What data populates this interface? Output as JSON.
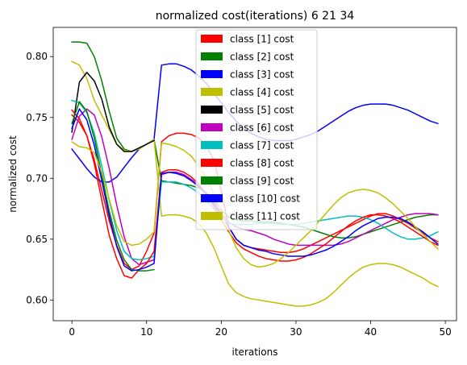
{
  "chart_data": {
    "type": "line",
    "title": "normalized cost(iterations) 6 21 34",
    "xlabel": "iterations",
    "ylabel": "normalized cost",
    "xlim": [
      -2.5,
      51.5
    ],
    "ylim": [
      0.583,
      0.824
    ],
    "xticks": [
      0,
      10,
      20,
      30,
      40,
      50
    ],
    "yticks": [
      0.6,
      0.65,
      0.7,
      0.75,
      0.8
    ],
    "xtick_labels": [
      "0",
      "10",
      "20",
      "30",
      "40",
      "50"
    ],
    "ytick_labels": [
      "0.60",
      "0.65",
      "0.70",
      "0.75",
      "0.80"
    ],
    "grid": false,
    "legend_position": "top-center",
    "series": [
      {
        "name": "class [1] cost",
        "color": "#ff0000",
        "x": [
          0,
          1,
          2,
          3,
          4,
          5,
          6,
          7,
          8,
          9,
          10,
          11,
          12,
          13,
          14,
          15,
          16,
          17,
          18,
          19,
          20,
          21,
          22,
          23,
          24,
          25,
          26,
          27,
          28,
          29,
          30,
          31,
          32,
          33,
          34,
          35,
          36,
          37,
          38,
          39,
          40,
          41,
          42,
          43,
          44,
          45,
          46,
          47,
          48,
          49
        ],
        "y": [
          0.752,
          0.746,
          0.735,
          0.715,
          0.69,
          0.665,
          0.645,
          0.63,
          0.625,
          0.628,
          0.64,
          0.655,
          0.73,
          0.735,
          0.737,
          0.737,
          0.736,
          0.733,
          0.727,
          0.715,
          0.69,
          0.66,
          0.65,
          0.645,
          0.643,
          0.642,
          0.641,
          0.64,
          0.639,
          0.639,
          0.64,
          0.642,
          0.645,
          0.648,
          0.651,
          0.654,
          0.657,
          0.66,
          0.663,
          0.666,
          0.669,
          0.671,
          0.671,
          0.669,
          0.666,
          0.663,
          0.659,
          0.655,
          0.651,
          0.648
        ]
      },
      {
        "name": "class [2] cost",
        "color": "#008000",
        "x": [
          0,
          1,
          2,
          3,
          4,
          5,
          6,
          7,
          8,
          9,
          10,
          11,
          12,
          13,
          14,
          15,
          16,
          17,
          18,
          19,
          20,
          21,
          22,
          23,
          24,
          25,
          26,
          27,
          28,
          29,
          30,
          31,
          32,
          33,
          34,
          35,
          36,
          37,
          38,
          39,
          40,
          41,
          42,
          43,
          44,
          45,
          46,
          47,
          48,
          49
        ],
        "y": [
          0.812,
          0.812,
          0.811,
          0.8,
          0.78,
          0.755,
          0.733,
          0.724,
          0.722,
          0.724,
          0.728,
          0.732,
          0.698,
          0.697,
          0.696,
          0.695,
          0.694,
          0.692,
          0.688,
          0.682,
          0.674,
          0.668,
          0.666,
          0.665,
          0.665,
          0.664,
          0.664,
          0.664,
          0.663,
          0.662,
          0.661,
          0.66,
          0.658,
          0.656,
          0.654,
          0.652,
          0.651,
          0.651,
          0.652,
          0.654,
          0.656,
          0.658,
          0.66,
          0.662,
          0.664,
          0.666,
          0.668,
          0.669,
          0.67,
          0.67
        ]
      },
      {
        "name": "class [3] cost",
        "color": "#0000ff",
        "x": [
          0,
          1,
          2,
          3,
          4,
          5,
          6,
          7,
          8,
          9,
          10,
          11,
          12,
          13,
          14,
          15,
          16,
          17,
          18,
          19,
          20,
          21,
          22,
          23,
          24,
          25,
          26,
          27,
          28,
          29,
          30,
          31,
          32,
          33,
          34,
          35,
          36,
          37,
          38,
          39,
          40,
          41,
          42,
          43,
          44,
          45,
          46,
          47,
          48,
          49
        ],
        "y": [
          0.724,
          0.716,
          0.708,
          0.701,
          0.697,
          0.697,
          0.701,
          0.709,
          0.717,
          0.724,
          0.728,
          0.732,
          0.793,
          0.794,
          0.794,
          0.792,
          0.789,
          0.784,
          0.778,
          0.77,
          0.762,
          0.754,
          0.747,
          0.741,
          0.737,
          0.734,
          0.732,
          0.731,
          0.731,
          0.731,
          0.732,
          0.734,
          0.736,
          0.739,
          0.743,
          0.747,
          0.751,
          0.755,
          0.758,
          0.76,
          0.761,
          0.761,
          0.761,
          0.76,
          0.758,
          0.756,
          0.753,
          0.75,
          0.747,
          0.745
        ]
      },
      {
        "name": "class [4] cost",
        "color": "#bfbf00",
        "x": [
          0,
          1,
          2,
          3,
          4,
          5,
          6,
          7,
          8,
          9,
          10,
          11,
          12,
          13,
          14,
          15,
          16,
          17,
          18,
          19,
          20,
          21,
          22,
          23,
          24,
          25,
          26,
          27,
          28,
          29,
          30,
          31,
          32,
          33,
          34,
          35,
          36,
          37,
          38,
          39,
          40,
          41,
          42,
          43,
          44,
          45,
          46,
          47,
          48,
          49
        ],
        "y": [
          0.796,
          0.793,
          0.782,
          0.764,
          0.752,
          0.74,
          0.728,
          0.723,
          0.722,
          0.724,
          0.728,
          0.732,
          0.669,
          0.67,
          0.67,
          0.669,
          0.667,
          0.663,
          0.655,
          0.643,
          0.628,
          0.613,
          0.606,
          0.603,
          0.601,
          0.6,
          0.599,
          0.598,
          0.597,
          0.596,
          0.595,
          0.595,
          0.596,
          0.598,
          0.601,
          0.606,
          0.612,
          0.618,
          0.623,
          0.627,
          0.629,
          0.63,
          0.63,
          0.629,
          0.627,
          0.624,
          0.621,
          0.618,
          0.614,
          0.611
        ]
      },
      {
        "name": "class [5] cost",
        "color": "#000000",
        "x": [
          0,
          1,
          2,
          3,
          4,
          5,
          6,
          7,
          8,
          9,
          10,
          11
        ],
        "y": [
          0.738,
          0.779,
          0.787,
          0.78,
          0.765,
          0.742,
          0.728,
          0.722,
          0.722,
          0.725,
          0.728,
          0.731
        ]
      },
      {
        "name": "class [6] cost",
        "color": "#bf00bf",
        "x": [
          0,
          1,
          2,
          3,
          4,
          5,
          6,
          7,
          8,
          9,
          10,
          11,
          12,
          13,
          14,
          15,
          16,
          17,
          18,
          19,
          20,
          21,
          22,
          23,
          24,
          25,
          26,
          27,
          28,
          29,
          30,
          31,
          32,
          33,
          34,
          35,
          36,
          37,
          38,
          39,
          40,
          41,
          42,
          43,
          44,
          45,
          46,
          47,
          48,
          49
        ],
        "y": [
          0.732,
          0.751,
          0.757,
          0.752,
          0.734,
          0.708,
          0.678,
          0.652,
          0.634,
          0.629,
          0.631,
          0.633,
          0.703,
          0.705,
          0.705,
          0.703,
          0.699,
          0.694,
          0.688,
          0.68,
          0.671,
          0.664,
          0.66,
          0.658,
          0.657,
          0.655,
          0.653,
          0.65,
          0.648,
          0.646,
          0.645,
          0.645,
          0.645,
          0.645,
          0.645,
          0.645,
          0.646,
          0.648,
          0.651,
          0.654,
          0.657,
          0.66,
          0.663,
          0.666,
          0.668,
          0.67,
          0.671,
          0.671,
          0.671,
          0.67
        ]
      },
      {
        "name": "class [7] cost",
        "color": "#00bfbf",
        "x": [
          0,
          1,
          2,
          3,
          4,
          5,
          6,
          7,
          8,
          9,
          10,
          11,
          12,
          13,
          14,
          15,
          16,
          17,
          18,
          19,
          20,
          21,
          22,
          23,
          24,
          25,
          26,
          27,
          28,
          29,
          30,
          31,
          32,
          33,
          34,
          35,
          36,
          37,
          38,
          39,
          40,
          41,
          42,
          43,
          44,
          45,
          46,
          47,
          48,
          49
        ],
        "y": [
          0.764,
          0.762,
          0.754,
          0.737,
          0.71,
          0.682,
          0.657,
          0.64,
          0.634,
          0.633,
          0.634,
          0.636,
          0.697,
          0.697,
          0.697,
          0.695,
          0.692,
          0.688,
          0.682,
          0.675,
          0.668,
          0.663,
          0.662,
          0.662,
          0.662,
          0.663,
          0.663,
          0.663,
          0.662,
          0.662,
          0.662,
          0.663,
          0.664,
          0.665,
          0.666,
          0.667,
          0.668,
          0.669,
          0.669,
          0.668,
          0.666,
          0.663,
          0.659,
          0.655,
          0.652,
          0.65,
          0.65,
          0.651,
          0.653,
          0.656
        ]
      },
      {
        "name": "class [8] cost",
        "color": "#ff0000",
        "x": [
          0,
          1,
          2,
          3,
          4,
          5,
          6,
          7,
          8,
          9,
          10,
          11,
          12,
          13,
          14,
          15,
          16,
          17,
          18,
          19,
          20,
          21,
          22,
          23,
          24,
          25,
          26,
          27,
          28,
          29,
          30,
          31,
          32,
          33,
          34,
          35,
          36,
          37,
          38,
          39,
          40,
          41,
          42,
          43,
          44,
          45,
          46,
          47,
          48,
          49
        ],
        "y": [
          0.756,
          0.749,
          0.735,
          0.712,
          0.682,
          0.653,
          0.634,
          0.62,
          0.618,
          0.625,
          0.63,
          0.64,
          0.705,
          0.707,
          0.707,
          0.705,
          0.701,
          0.695,
          0.687,
          0.677,
          0.666,
          0.656,
          0.647,
          0.642,
          0.639,
          0.636,
          0.634,
          0.633,
          0.632,
          0.632,
          0.633,
          0.635,
          0.638,
          0.642,
          0.646,
          0.651,
          0.656,
          0.661,
          0.665,
          0.668,
          0.67,
          0.67,
          0.669,
          0.667,
          0.664,
          0.66,
          0.656,
          0.652,
          0.648,
          0.645
        ]
      },
      {
        "name": "class [9] cost",
        "color": "#008000",
        "x": [
          0,
          1,
          2,
          3,
          4,
          5,
          6,
          7,
          8,
          9,
          10,
          11
        ],
        "y": [
          0.745,
          0.763,
          0.755,
          0.733,
          0.703,
          0.673,
          0.649,
          0.633,
          0.625,
          0.624,
          0.624,
          0.625
        ]
      },
      {
        "name": "class [10] cost",
        "color": "#0000ff",
        "x": [
          0,
          1,
          2,
          3,
          4,
          5,
          6,
          7,
          8,
          9,
          10,
          11,
          12,
          13,
          14,
          15,
          16,
          17,
          18,
          19,
          20,
          21,
          22,
          23,
          24,
          25,
          26,
          27,
          28,
          29,
          30,
          31,
          32,
          33,
          34,
          35,
          36,
          37,
          38,
          39,
          40,
          41,
          42,
          43,
          44,
          45,
          46,
          47,
          48,
          49
        ],
        "y": [
          0.741,
          0.757,
          0.748,
          0.727,
          0.698,
          0.669,
          0.644,
          0.628,
          0.624,
          0.625,
          0.627,
          0.63,
          0.704,
          0.705,
          0.704,
          0.702,
          0.698,
          0.693,
          0.687,
          0.679,
          0.67,
          0.66,
          0.65,
          0.645,
          0.643,
          0.641,
          0.64,
          0.638,
          0.637,
          0.636,
          0.636,
          0.636,
          0.637,
          0.639,
          0.641,
          0.644,
          0.648,
          0.652,
          0.657,
          0.661,
          0.664,
          0.667,
          0.668,
          0.668,
          0.667,
          0.664,
          0.66,
          0.656,
          0.651,
          0.646
        ]
      },
      {
        "name": "class [11] cost",
        "color": "#bfbf00",
        "x": [
          0,
          1,
          2,
          3,
          4,
          5,
          6,
          7,
          8,
          9,
          10,
          11,
          12,
          13,
          14,
          15,
          16,
          17,
          18,
          19,
          20,
          21,
          22,
          23,
          24,
          25,
          26,
          27,
          28,
          29,
          30,
          31,
          32,
          33,
          34,
          35,
          36,
          37,
          38,
          39,
          40,
          41,
          42,
          43,
          44,
          45,
          46,
          47,
          48,
          49
        ],
        "y": [
          0.73,
          0.726,
          0.725,
          0.721,
          0.705,
          0.683,
          0.661,
          0.648,
          0.645,
          0.646,
          0.65,
          0.656,
          0.729,
          0.728,
          0.726,
          0.723,
          0.718,
          0.71,
          0.7,
          0.687,
          0.672,
          0.657,
          0.643,
          0.634,
          0.629,
          0.627,
          0.628,
          0.63,
          0.634,
          0.639,
          0.645,
          0.651,
          0.657,
          0.664,
          0.671,
          0.678,
          0.684,
          0.688,
          0.69,
          0.691,
          0.69,
          0.688,
          0.684,
          0.679,
          0.673,
          0.667,
          0.66,
          0.654,
          0.648,
          0.642
        ]
      }
    ]
  }
}
